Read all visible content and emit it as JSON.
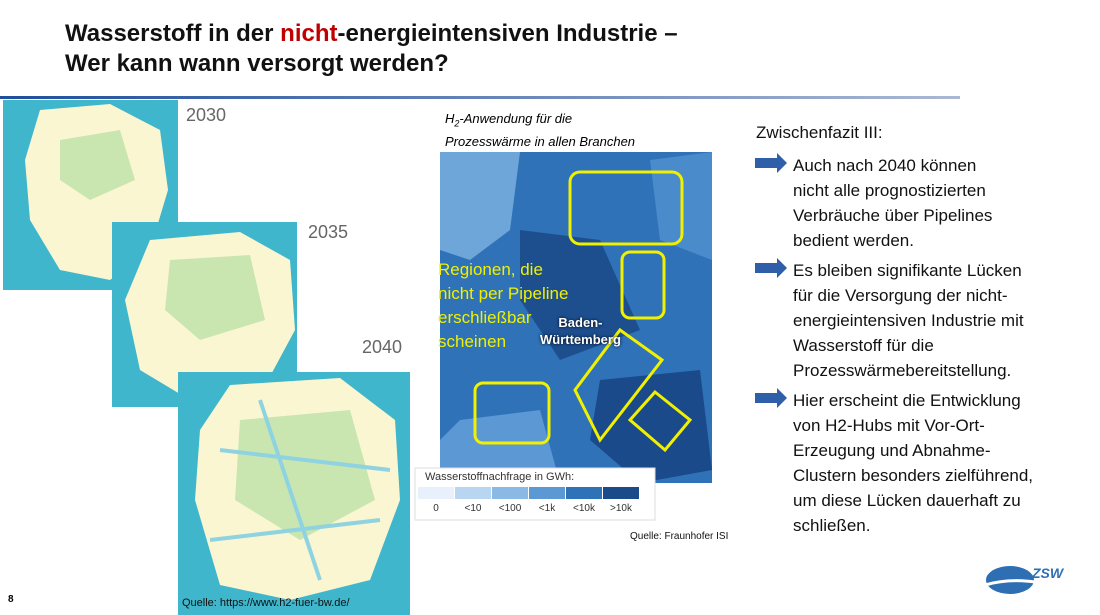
{
  "title": {
    "before": "Wasserstoff in der ",
    "highlight": "nicht",
    "after": "-energieintensiven Industrie –",
    "line2": "Wer kann wann versorgt werden?"
  },
  "maps": {
    "years": [
      "2030",
      "2035",
      "2040"
    ],
    "source": "Quelle: https://www.h2-fuer-bw.de/"
  },
  "heatmap": {
    "caption": {
      "h": "H",
      "sub": "2",
      "rest": "-Anwendung für die",
      "line2": "Prozesswärme in allen Branchen"
    },
    "annotation": [
      "Regionen, die",
      "nicht per Pipeline",
      "erschließbar",
      "scheinen"
    ],
    "region": [
      "Baden-",
      "Württemberg"
    ],
    "legend": {
      "title": "Wasserstoffnachfrage in GWh:",
      "labels": [
        "0",
        "<10",
        "<100",
        "<1k",
        "<10k",
        ">10k"
      ]
    },
    "source": "Quelle: Fraunhofer ISI"
  },
  "summary": {
    "heading": "Zwischenfazit III:",
    "bullets": [
      [
        "Auch nach 2040 können",
        "nicht alle prognostizierten",
        "Verbräuche über Pipelines",
        "bedient werden."
      ],
      [
        "Es bleiben signifikante Lücken",
        "für die Versorgung der nicht-",
        "energieintensiven Industrie mit",
        "Wasserstoff für die",
        "Prozesswärmebereitstellung."
      ],
      [
        "Hier erscheint die Entwicklung",
        "von H2-Hubs mit Vor-Ort-",
        "Erzeugung und Abnahme-",
        "Clustern besonders zielführend,",
        "um diese Lücken dauerhaft zu",
        "schließen."
      ]
    ]
  },
  "page_number": "8",
  "logo": "ZSW"
}
